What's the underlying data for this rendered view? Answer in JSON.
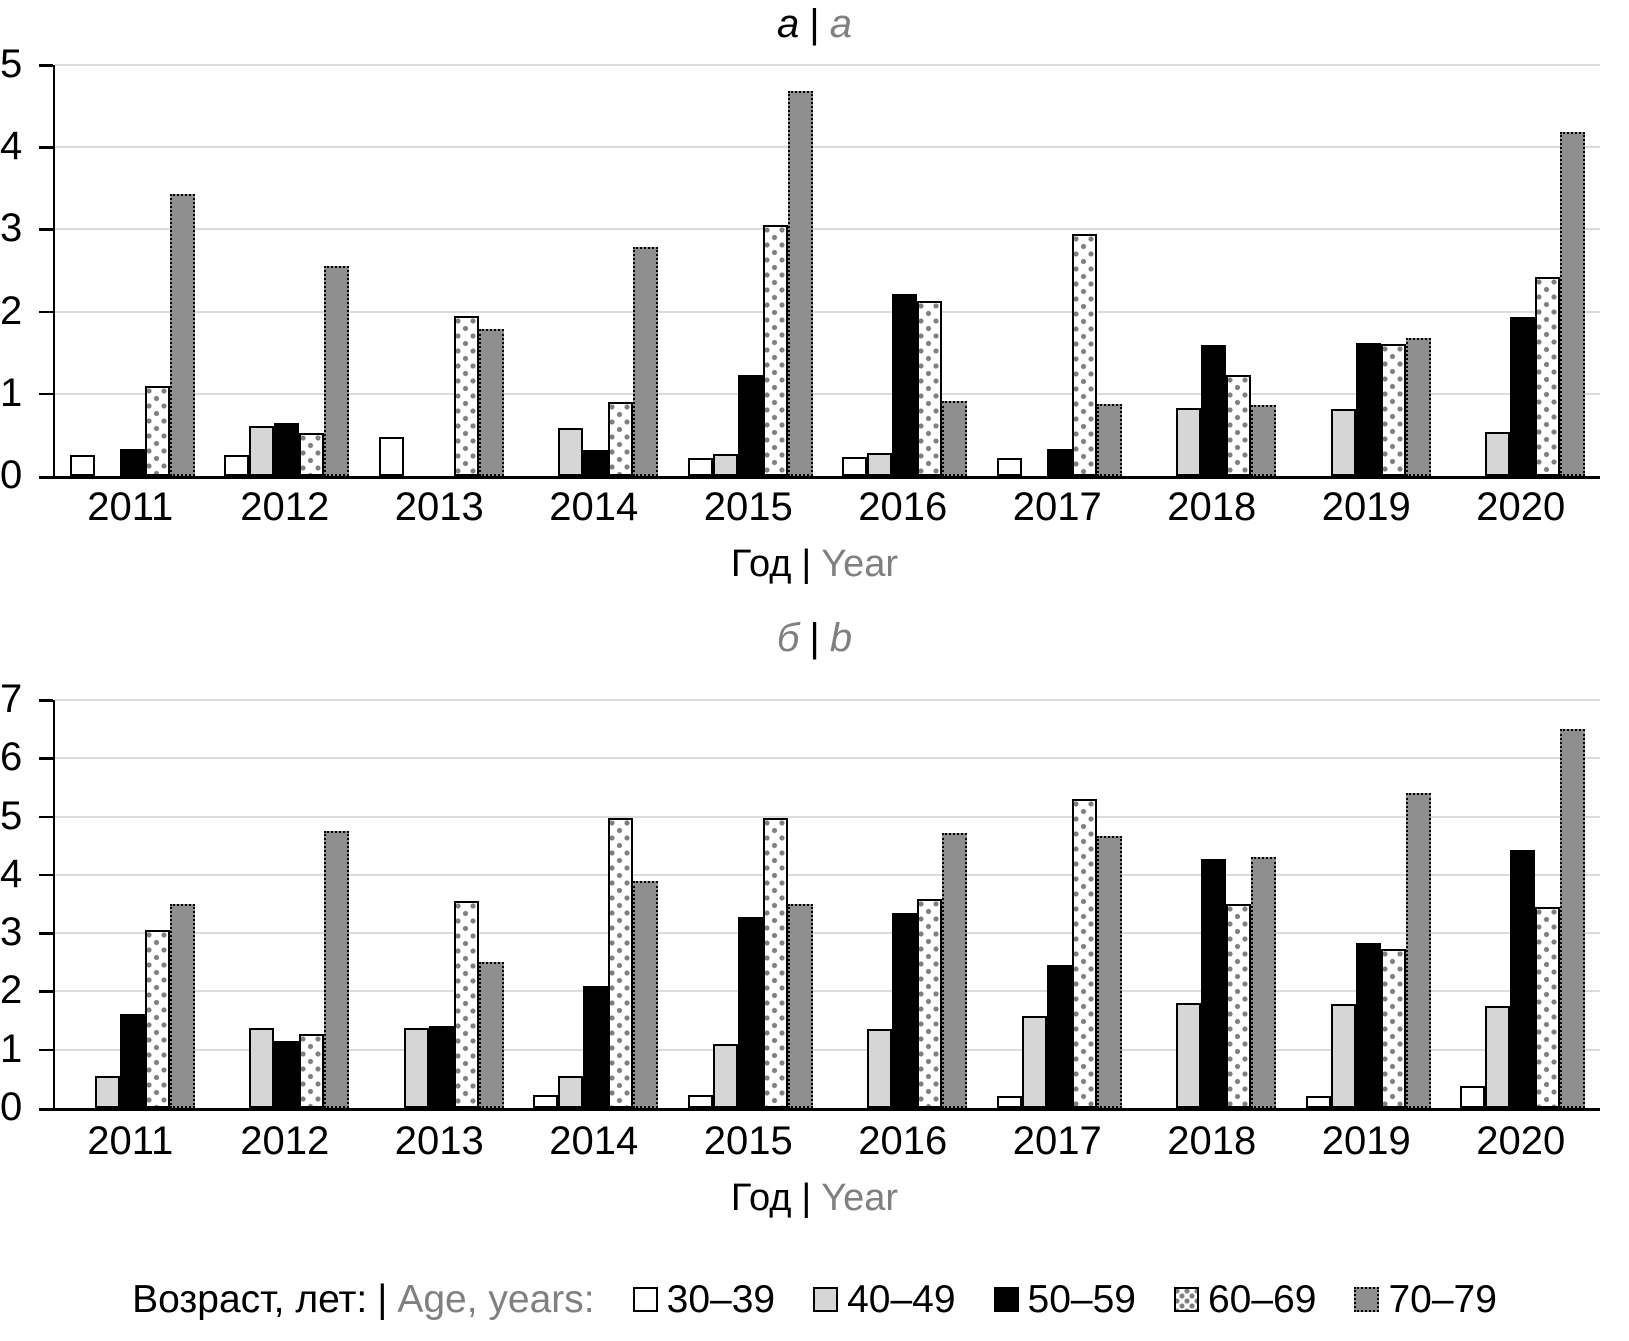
{
  "chart_data": [
    {
      "type": "bar",
      "panel": "a",
      "title": "a | a",
      "xlabel": "Год | Year",
      "ylabel": "",
      "ylim": [
        0,
        5
      ],
      "yticks": [
        0,
        1,
        2,
        3,
        4,
        5
      ],
      "grid": true,
      "legend_position": "bottom-shared",
      "categories": [
        "2011",
        "2012",
        "2013",
        "2014",
        "2015",
        "2016",
        "2017",
        "2018",
        "2019",
        "2020"
      ],
      "series": [
        {
          "name": "30–39",
          "values": [
            0.26,
            0.26,
            0.48,
            0,
            0.22,
            0.23,
            0.22,
            0,
            0,
            0
          ]
        },
        {
          "name": "40–49",
          "values": [
            0,
            0.61,
            0,
            0.59,
            0.27,
            0.28,
            0,
            0.83,
            0.81,
            0.53
          ]
        },
        {
          "name": "50–59",
          "values": [
            0.33,
            0.64,
            0,
            0.32,
            1.23,
            2.21,
            0.33,
            1.59,
            1.62,
            1.94
          ]
        },
        {
          "name": "60–69",
          "values": [
            1.1,
            0.52,
            1.95,
            0.9,
            3.05,
            2.13,
            2.94,
            1.23,
            1.61,
            2.42
          ]
        },
        {
          "name": "70–79",
          "values": [
            3.43,
            2.55,
            1.79,
            2.79,
            4.68,
            0.91,
            0.88,
            0.86,
            1.68,
            4.18
          ]
        }
      ]
    },
    {
      "type": "bar",
      "panel": "b",
      "title": "б | b",
      "xlabel": "Год | Year",
      "ylabel": "",
      "ylim": [
        0,
        7
      ],
      "yticks": [
        0,
        1,
        2,
        3,
        4,
        5,
        6,
        7
      ],
      "grid": true,
      "legend_position": "bottom-shared",
      "categories": [
        "2011",
        "2012",
        "2013",
        "2014",
        "2015",
        "2016",
        "2017",
        "2018",
        "2019",
        "2020"
      ],
      "series": [
        {
          "name": "30–39",
          "values": [
            0,
            0,
            0,
            0.22,
            0.23,
            0,
            0.2,
            0,
            0.2,
            0.38
          ]
        },
        {
          "name": "40–49",
          "values": [
            0.55,
            1.38,
            1.38,
            0.55,
            1.1,
            1.35,
            1.58,
            1.8,
            1.78,
            1.75
          ]
        },
        {
          "name": "50–59",
          "values": [
            1.62,
            1.15,
            1.4,
            2.1,
            3.28,
            3.35,
            2.45,
            4.27,
            2.83,
            4.42
          ]
        },
        {
          "name": "60–69",
          "values": [
            3.05,
            1.27,
            3.55,
            4.97,
            4.97,
            3.58,
            5.3,
            3.5,
            2.72,
            3.45
          ]
        },
        {
          "name": "70–79",
          "values": [
            3.5,
            4.75,
            2.5,
            3.9,
            3.5,
            4.72,
            4.67,
            4.3,
            5.4,
            6.5
          ]
        }
      ]
    }
  ],
  "ui": {
    "panel_a_title": {
      "left": "a",
      "pipe": "|",
      "right": "a"
    },
    "panel_b_title": {
      "left": "б",
      "pipe": "|",
      "right": "b"
    },
    "x_axis": {
      "ru": "Год",
      "pipe": "|",
      "en": "Year"
    },
    "legend": {
      "title_ru": "Возраст, лет:",
      "pipe": "|",
      "title_en": "Age, years:",
      "items": [
        "30–39",
        "40–49",
        "50–59",
        "60–69",
        "70–79"
      ]
    }
  },
  "colors": {
    "gray_text": "#808080",
    "bar_white": "#ffffff",
    "bar_light_gray": "#d6d6d6",
    "bar_black": "#000000",
    "bar_dot_pattern": "#7f7f7f",
    "bar_dark_gray": "#8f8f8f",
    "gridline": "#dcdcdc"
  }
}
